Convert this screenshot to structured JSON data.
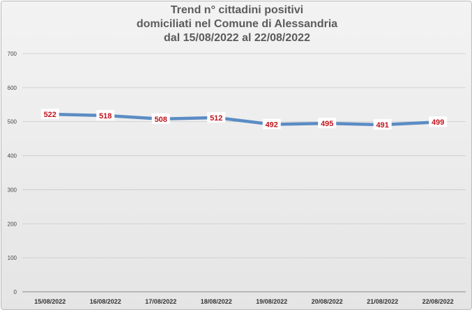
{
  "chart_data": {
    "type": "line",
    "title_lines": [
      "Trend n° cittadini positivi",
      "domiciliati nel Comune di Alessandria",
      "dal 15/08/2022 al 22/08/2022"
    ],
    "categories": [
      "15/08/2022",
      "16/08/2022",
      "17/08/2022",
      "18/08/2022",
      "19/08/2022",
      "20/08/2022",
      "21/08/2022",
      "22/08/2022"
    ],
    "series": [
      {
        "values": [
          522,
          518,
          508,
          512,
          492,
          495,
          491,
          499
        ],
        "color": "#5b8cc4"
      }
    ],
    "yticks": [
      0,
      100,
      200,
      300,
      400,
      500,
      600,
      700
    ],
    "ylim": [
      0,
      700
    ],
    "xlabel": "",
    "ylabel": "",
    "grid": true,
    "data_label_color": "#c0141c"
  }
}
